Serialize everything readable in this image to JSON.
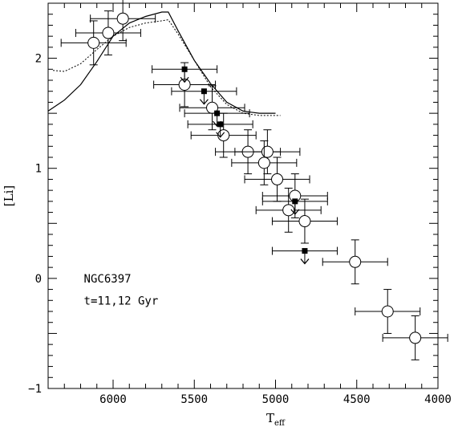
{
  "chart_data": {
    "type": "scatter",
    "xlabel": "T",
    "xlabel_sub": "eff",
    "ylabel": "[Li]",
    "xlim": [
      6400,
      4000
    ],
    "ylim": [
      -1,
      2.5
    ],
    "xticks": [
      6000,
      5500,
      5000,
      4500,
      4000
    ],
    "yticks": [
      -1,
      0,
      1,
      2
    ],
    "xticklabels": [
      "6000",
      "5500",
      "5000",
      "4500",
      "4000"
    ],
    "yticklabels": [
      "−1",
      "0",
      "1",
      "2"
    ],
    "annotations": [
      "NGC6397",
      "t=11,12 Gyr"
    ],
    "grid": false,
    "detections": [
      {
        "x": 6120,
        "y": 2.14,
        "xerr": 200,
        "yerr": 0.2
      },
      {
        "x": 6030,
        "y": 2.23,
        "xerr": 200,
        "yerr": 0.2
      },
      {
        "x": 5940,
        "y": 2.36,
        "xerr": 200,
        "yerr": 0.2
      },
      {
        "x": 5560,
        "y": 1.76,
        "xerr": 190,
        "yerr": 0.2
      },
      {
        "x": 5390,
        "y": 1.55,
        "xerr": 200,
        "yerr": 0.2
      },
      {
        "x": 5320,
        "y": 1.3,
        "xerr": 200,
        "yerr": 0.2
      },
      {
        "x": 5170,
        "y": 1.15,
        "xerr": 200,
        "yerr": 0.2
      },
      {
        "x": 5050,
        "y": 1.15,
        "xerr": 200,
        "yerr": 0.2
      },
      {
        "x": 5070,
        "y": 1.05,
        "xerr": 200,
        "yerr": 0.2
      },
      {
        "x": 4990,
        "y": 0.9,
        "xerr": 200,
        "yerr": 0.2
      },
      {
        "x": 4880,
        "y": 0.75,
        "xerr": 200,
        "yerr": 0.2
      },
      {
        "x": 4920,
        "y": 0.62,
        "xerr": 200,
        "yerr": 0.2
      },
      {
        "x": 4820,
        "y": 0.52,
        "xerr": 200,
        "yerr": 0.2
      },
      {
        "x": 4510,
        "y": 0.15,
        "xerr": 200,
        "yerr": 0.2
      },
      {
        "x": 4310,
        "y": -0.3,
        "xerr": 200,
        "yerr": 0.2
      },
      {
        "x": 4140,
        "y": -0.54,
        "xerr": 200,
        "yerr": 0.2
      }
    ],
    "upper_limits": [
      {
        "x": 5560,
        "y": 1.9,
        "xerr": 200
      },
      {
        "x": 5440,
        "y": 1.7,
        "xerr": 200
      },
      {
        "x": 5360,
        "y": 1.5,
        "xerr": 200
      },
      {
        "x": 5340,
        "y": 1.4,
        "xerr": 200
      },
      {
        "x": 4880,
        "y": 0.7,
        "xerr": 200
      },
      {
        "x": 4820,
        "y": 0.25,
        "xerr": 200
      }
    ],
    "model_solid": {
      "x": [
        6400,
        6300,
        6200,
        6100,
        6000,
        5900,
        5800,
        5700,
        5660,
        5600,
        5500,
        5400,
        5300,
        5200,
        5150,
        5100,
        5000
      ],
      "y": [
        1.52,
        1.62,
        1.76,
        1.97,
        2.2,
        2.32,
        2.38,
        2.42,
        2.42,
        2.25,
        1.98,
        1.77,
        1.6,
        1.52,
        1.51,
        1.5,
        1.5
      ]
    },
    "model_dotted": {
      "x": [
        6370,
        6300,
        6200,
        6100,
        6000,
        5900,
        5800,
        5700,
        5660,
        5600,
        5500,
        5400,
        5300,
        5200,
        5100,
        5000,
        4970
      ],
      "y": [
        1.89,
        1.88,
        1.95,
        2.08,
        2.2,
        2.28,
        2.32,
        2.34,
        2.35,
        2.22,
        1.98,
        1.74,
        1.58,
        1.5,
        1.48,
        1.48,
        1.48
      ]
    }
  }
}
